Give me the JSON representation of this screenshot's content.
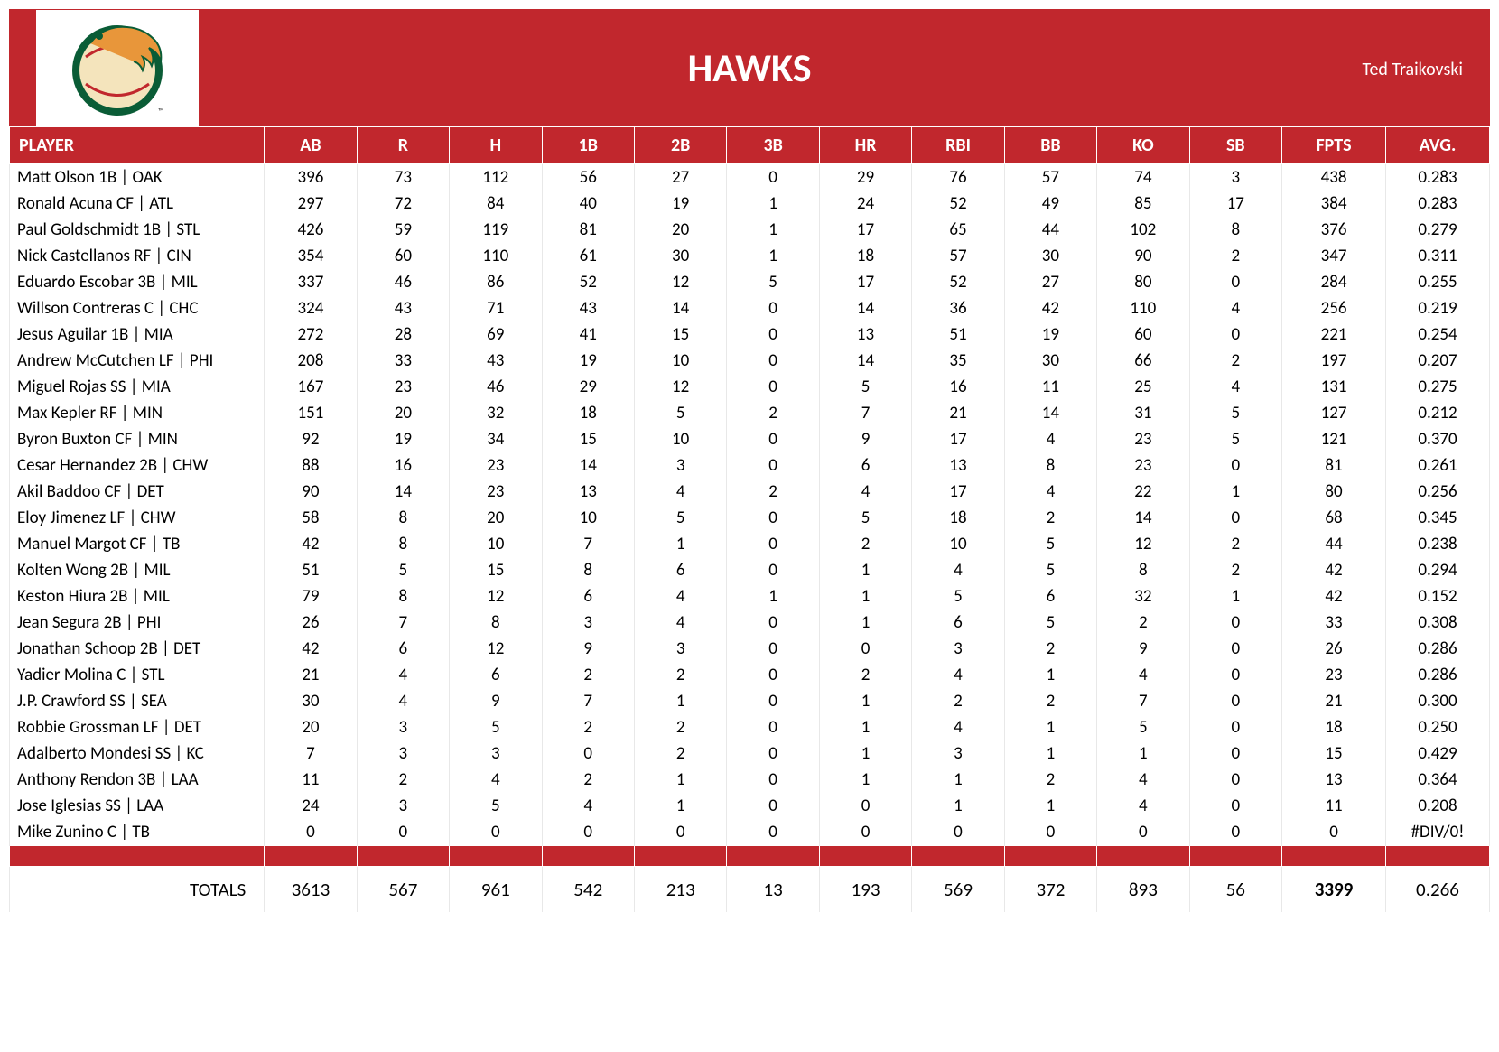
{
  "header": {
    "team_name": "HAWKS",
    "owner": "Ted Traikovski",
    "band_color": "#c1272d",
    "title_color": "#ffffff"
  },
  "table": {
    "columns": [
      "PLAYER",
      "AB",
      "R",
      "H",
      "1B",
      "2B",
      "3B",
      "HR",
      "RBI",
      "BB",
      "KO",
      "SB",
      "FPTS",
      "AVG."
    ],
    "rows": [
      {
        "player": "Matt Olson 1B | OAK",
        "ab": "396",
        "r": "73",
        "h": "112",
        "b1": "56",
        "b2": "27",
        "b3": "0",
        "hr": "29",
        "rbi": "76",
        "bb": "57",
        "ko": "74",
        "sb": "3",
        "fpts": "438",
        "avg": "0.283"
      },
      {
        "player": "Ronald Acuna CF | ATL",
        "ab": "297",
        "r": "72",
        "h": "84",
        "b1": "40",
        "b2": "19",
        "b3": "1",
        "hr": "24",
        "rbi": "52",
        "bb": "49",
        "ko": "85",
        "sb": "17",
        "fpts": "384",
        "avg": "0.283"
      },
      {
        "player": "Paul Goldschmidt 1B | STL",
        "ab": "426",
        "r": "59",
        "h": "119",
        "b1": "81",
        "b2": "20",
        "b3": "1",
        "hr": "17",
        "rbi": "65",
        "bb": "44",
        "ko": "102",
        "sb": "8",
        "fpts": "376",
        "avg": "0.279"
      },
      {
        "player": "Nick Castellanos RF | CIN",
        "ab": "354",
        "r": "60",
        "h": "110",
        "b1": "61",
        "b2": "30",
        "b3": "1",
        "hr": "18",
        "rbi": "57",
        "bb": "30",
        "ko": "90",
        "sb": "2",
        "fpts": "347",
        "avg": "0.311"
      },
      {
        "player": "Eduardo Escobar 3B | MIL",
        "ab": "337",
        "r": "46",
        "h": "86",
        "b1": "52",
        "b2": "12",
        "b3": "5",
        "hr": "17",
        "rbi": "52",
        "bb": "27",
        "ko": "80",
        "sb": "0",
        "fpts": "284",
        "avg": "0.255"
      },
      {
        "player": "Willson Contreras C | CHC",
        "ab": "324",
        "r": "43",
        "h": "71",
        "b1": "43",
        "b2": "14",
        "b3": "0",
        "hr": "14",
        "rbi": "36",
        "bb": "42",
        "ko": "110",
        "sb": "4",
        "fpts": "256",
        "avg": "0.219"
      },
      {
        "player": "Jesus Aguilar 1B | MIA",
        "ab": "272",
        "r": "28",
        "h": "69",
        "b1": "41",
        "b2": "15",
        "b3": "0",
        "hr": "13",
        "rbi": "51",
        "bb": "19",
        "ko": "60",
        "sb": "0",
        "fpts": "221",
        "avg": "0.254"
      },
      {
        "player": "Andrew McCutchen LF | PHI",
        "ab": "208",
        "r": "33",
        "h": "43",
        "b1": "19",
        "b2": "10",
        "b3": "0",
        "hr": "14",
        "rbi": "35",
        "bb": "30",
        "ko": "66",
        "sb": "2",
        "fpts": "197",
        "avg": "0.207"
      },
      {
        "player": "Miguel Rojas SS | MIA",
        "ab": "167",
        "r": "23",
        "h": "46",
        "b1": "29",
        "b2": "12",
        "b3": "0",
        "hr": "5",
        "rbi": "16",
        "bb": "11",
        "ko": "25",
        "sb": "4",
        "fpts": "131",
        "avg": "0.275"
      },
      {
        "player": "Max Kepler RF | MIN",
        "ab": "151",
        "r": "20",
        "h": "32",
        "b1": "18",
        "b2": "5",
        "b3": "2",
        "hr": "7",
        "rbi": "21",
        "bb": "14",
        "ko": "31",
        "sb": "5",
        "fpts": "127",
        "avg": "0.212"
      },
      {
        "player": "Byron Buxton CF | MIN",
        "ab": "92",
        "r": "19",
        "h": "34",
        "b1": "15",
        "b2": "10",
        "b3": "0",
        "hr": "9",
        "rbi": "17",
        "bb": "4",
        "ko": "23",
        "sb": "5",
        "fpts": "121",
        "avg": "0.370"
      },
      {
        "player": "Cesar Hernandez 2B | CHW",
        "ab": "88",
        "r": "16",
        "h": "23",
        "b1": "14",
        "b2": "3",
        "b3": "0",
        "hr": "6",
        "rbi": "13",
        "bb": "8",
        "ko": "23",
        "sb": "0",
        "fpts": "81",
        "avg": "0.261"
      },
      {
        "player": "Akil Baddoo CF | DET",
        "ab": "90",
        "r": "14",
        "h": "23",
        "b1": "13",
        "b2": "4",
        "b3": "2",
        "hr": "4",
        "rbi": "17",
        "bb": "4",
        "ko": "22",
        "sb": "1",
        "fpts": "80",
        "avg": "0.256"
      },
      {
        "player": "Eloy Jimenez LF | CHW",
        "ab": "58",
        "r": "8",
        "h": "20",
        "b1": "10",
        "b2": "5",
        "b3": "0",
        "hr": "5",
        "rbi": "18",
        "bb": "2",
        "ko": "14",
        "sb": "0",
        "fpts": "68",
        "avg": "0.345"
      },
      {
        "player": "Manuel Margot CF | TB",
        "ab": "42",
        "r": "8",
        "h": "10",
        "b1": "7",
        "b2": "1",
        "b3": "0",
        "hr": "2",
        "rbi": "10",
        "bb": "5",
        "ko": "12",
        "sb": "2",
        "fpts": "44",
        "avg": "0.238"
      },
      {
        "player": "Kolten Wong 2B | MIL",
        "ab": "51",
        "r": "5",
        "h": "15",
        "b1": "8",
        "b2": "6",
        "b3": "0",
        "hr": "1",
        "rbi": "4",
        "bb": "5",
        "ko": "8",
        "sb": "2",
        "fpts": "42",
        "avg": "0.294"
      },
      {
        "player": "Keston Hiura 2B | MIL",
        "ab": "79",
        "r": "8",
        "h": "12",
        "b1": "6",
        "b2": "4",
        "b3": "1",
        "hr": "1",
        "rbi": "5",
        "bb": "6",
        "ko": "32",
        "sb": "1",
        "fpts": "42",
        "avg": "0.152"
      },
      {
        "player": "Jean Segura 2B | PHI",
        "ab": "26",
        "r": "7",
        "h": "8",
        "b1": "3",
        "b2": "4",
        "b3": "0",
        "hr": "1",
        "rbi": "6",
        "bb": "5",
        "ko": "2",
        "sb": "0",
        "fpts": "33",
        "avg": "0.308"
      },
      {
        "player": "Jonathan Schoop 2B | DET",
        "ab": "42",
        "r": "6",
        "h": "12",
        "b1": "9",
        "b2": "3",
        "b3": "0",
        "hr": "0",
        "rbi": "3",
        "bb": "2",
        "ko": "9",
        "sb": "0",
        "fpts": "26",
        "avg": "0.286"
      },
      {
        "player": "Yadier Molina C | STL",
        "ab": "21",
        "r": "4",
        "h": "6",
        "b1": "2",
        "b2": "2",
        "b3": "0",
        "hr": "2",
        "rbi": "4",
        "bb": "1",
        "ko": "4",
        "sb": "0",
        "fpts": "23",
        "avg": "0.286"
      },
      {
        "player": "J.P. Crawford SS | SEA",
        "ab": "30",
        "r": "4",
        "h": "9",
        "b1": "7",
        "b2": "1",
        "b3": "0",
        "hr": "1",
        "rbi": "2",
        "bb": "2",
        "ko": "7",
        "sb": "0",
        "fpts": "21",
        "avg": "0.300"
      },
      {
        "player": "Robbie Grossman LF | DET",
        "ab": "20",
        "r": "3",
        "h": "5",
        "b1": "2",
        "b2": "2",
        "b3": "0",
        "hr": "1",
        "rbi": "4",
        "bb": "1",
        "ko": "5",
        "sb": "0",
        "fpts": "18",
        "avg": "0.250"
      },
      {
        "player": "Adalberto Mondesi SS | KC",
        "ab": "7",
        "r": "3",
        "h": "3",
        "b1": "0",
        "b2": "2",
        "b3": "0",
        "hr": "1",
        "rbi": "3",
        "bb": "1",
        "ko": "1",
        "sb": "0",
        "fpts": "15",
        "avg": "0.429"
      },
      {
        "player": "Anthony Rendon 3B | LAA",
        "ab": "11",
        "r": "2",
        "h": "4",
        "b1": "2",
        "b2": "1",
        "b3": "0",
        "hr": "1",
        "rbi": "1",
        "bb": "2",
        "ko": "4",
        "sb": "0",
        "fpts": "13",
        "avg": "0.364"
      },
      {
        "player": "Jose Iglesias SS | LAA",
        "ab": "24",
        "r": "3",
        "h": "5",
        "b1": "4",
        "b2": "1",
        "b3": "0",
        "hr": "0",
        "rbi": "1",
        "bb": "1",
        "ko": "4",
        "sb": "0",
        "fpts": "11",
        "avg": "0.208"
      },
      {
        "player": "Mike Zunino C | TB",
        "ab": "0",
        "r": "0",
        "h": "0",
        "b1": "0",
        "b2": "0",
        "b3": "0",
        "hr": "0",
        "rbi": "0",
        "bb": "0",
        "ko": "0",
        "sb": "0",
        "fpts": "0",
        "avg": "#DIV/0!"
      }
    ],
    "totals": {
      "label": "TOTALS",
      "ab": "3613",
      "r": "567",
      "h": "961",
      "b1": "542",
      "b2": "213",
      "b3": "13",
      "hr": "193",
      "rbi": "569",
      "bb": "372",
      "ko": "893",
      "sb": "56",
      "fpts": "3399",
      "avg": "0.266"
    }
  }
}
